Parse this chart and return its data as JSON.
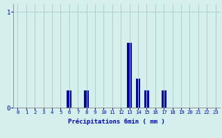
{
  "hours": [
    0,
    1,
    2,
    3,
    4,
    5,
    6,
    7,
    8,
    9,
    10,
    11,
    12,
    13,
    14,
    15,
    16,
    17,
    18,
    19,
    20,
    21,
    22,
    23
  ],
  "values": [
    0,
    0,
    0,
    0,
    0,
    0,
    0.18,
    0,
    0.18,
    0,
    0,
    0,
    0,
    0.68,
    0.3,
    0.18,
    0,
    0.18,
    0,
    0,
    0,
    0,
    0,
    0
  ],
  "bar_color": "#0000bb",
  "bg_color": "#d4efec",
  "grid_color": "#b0cccc",
  "axis_color": "#909090",
  "text_color": "#0000bb",
  "xlabel": "Précipitations 6min ( mm )",
  "ytick_labels": [
    "0",
    "1"
  ],
  "ytick_values": [
    0,
    1
  ],
  "ylim": [
    0,
    1.08
  ],
  "xlim": [
    -0.5,
    23.5
  ],
  "bar_width": 0.55,
  "xlabel_fontsize": 6.5,
  "xtick_fontsize": 5.2,
  "ytick_fontsize": 6.5
}
